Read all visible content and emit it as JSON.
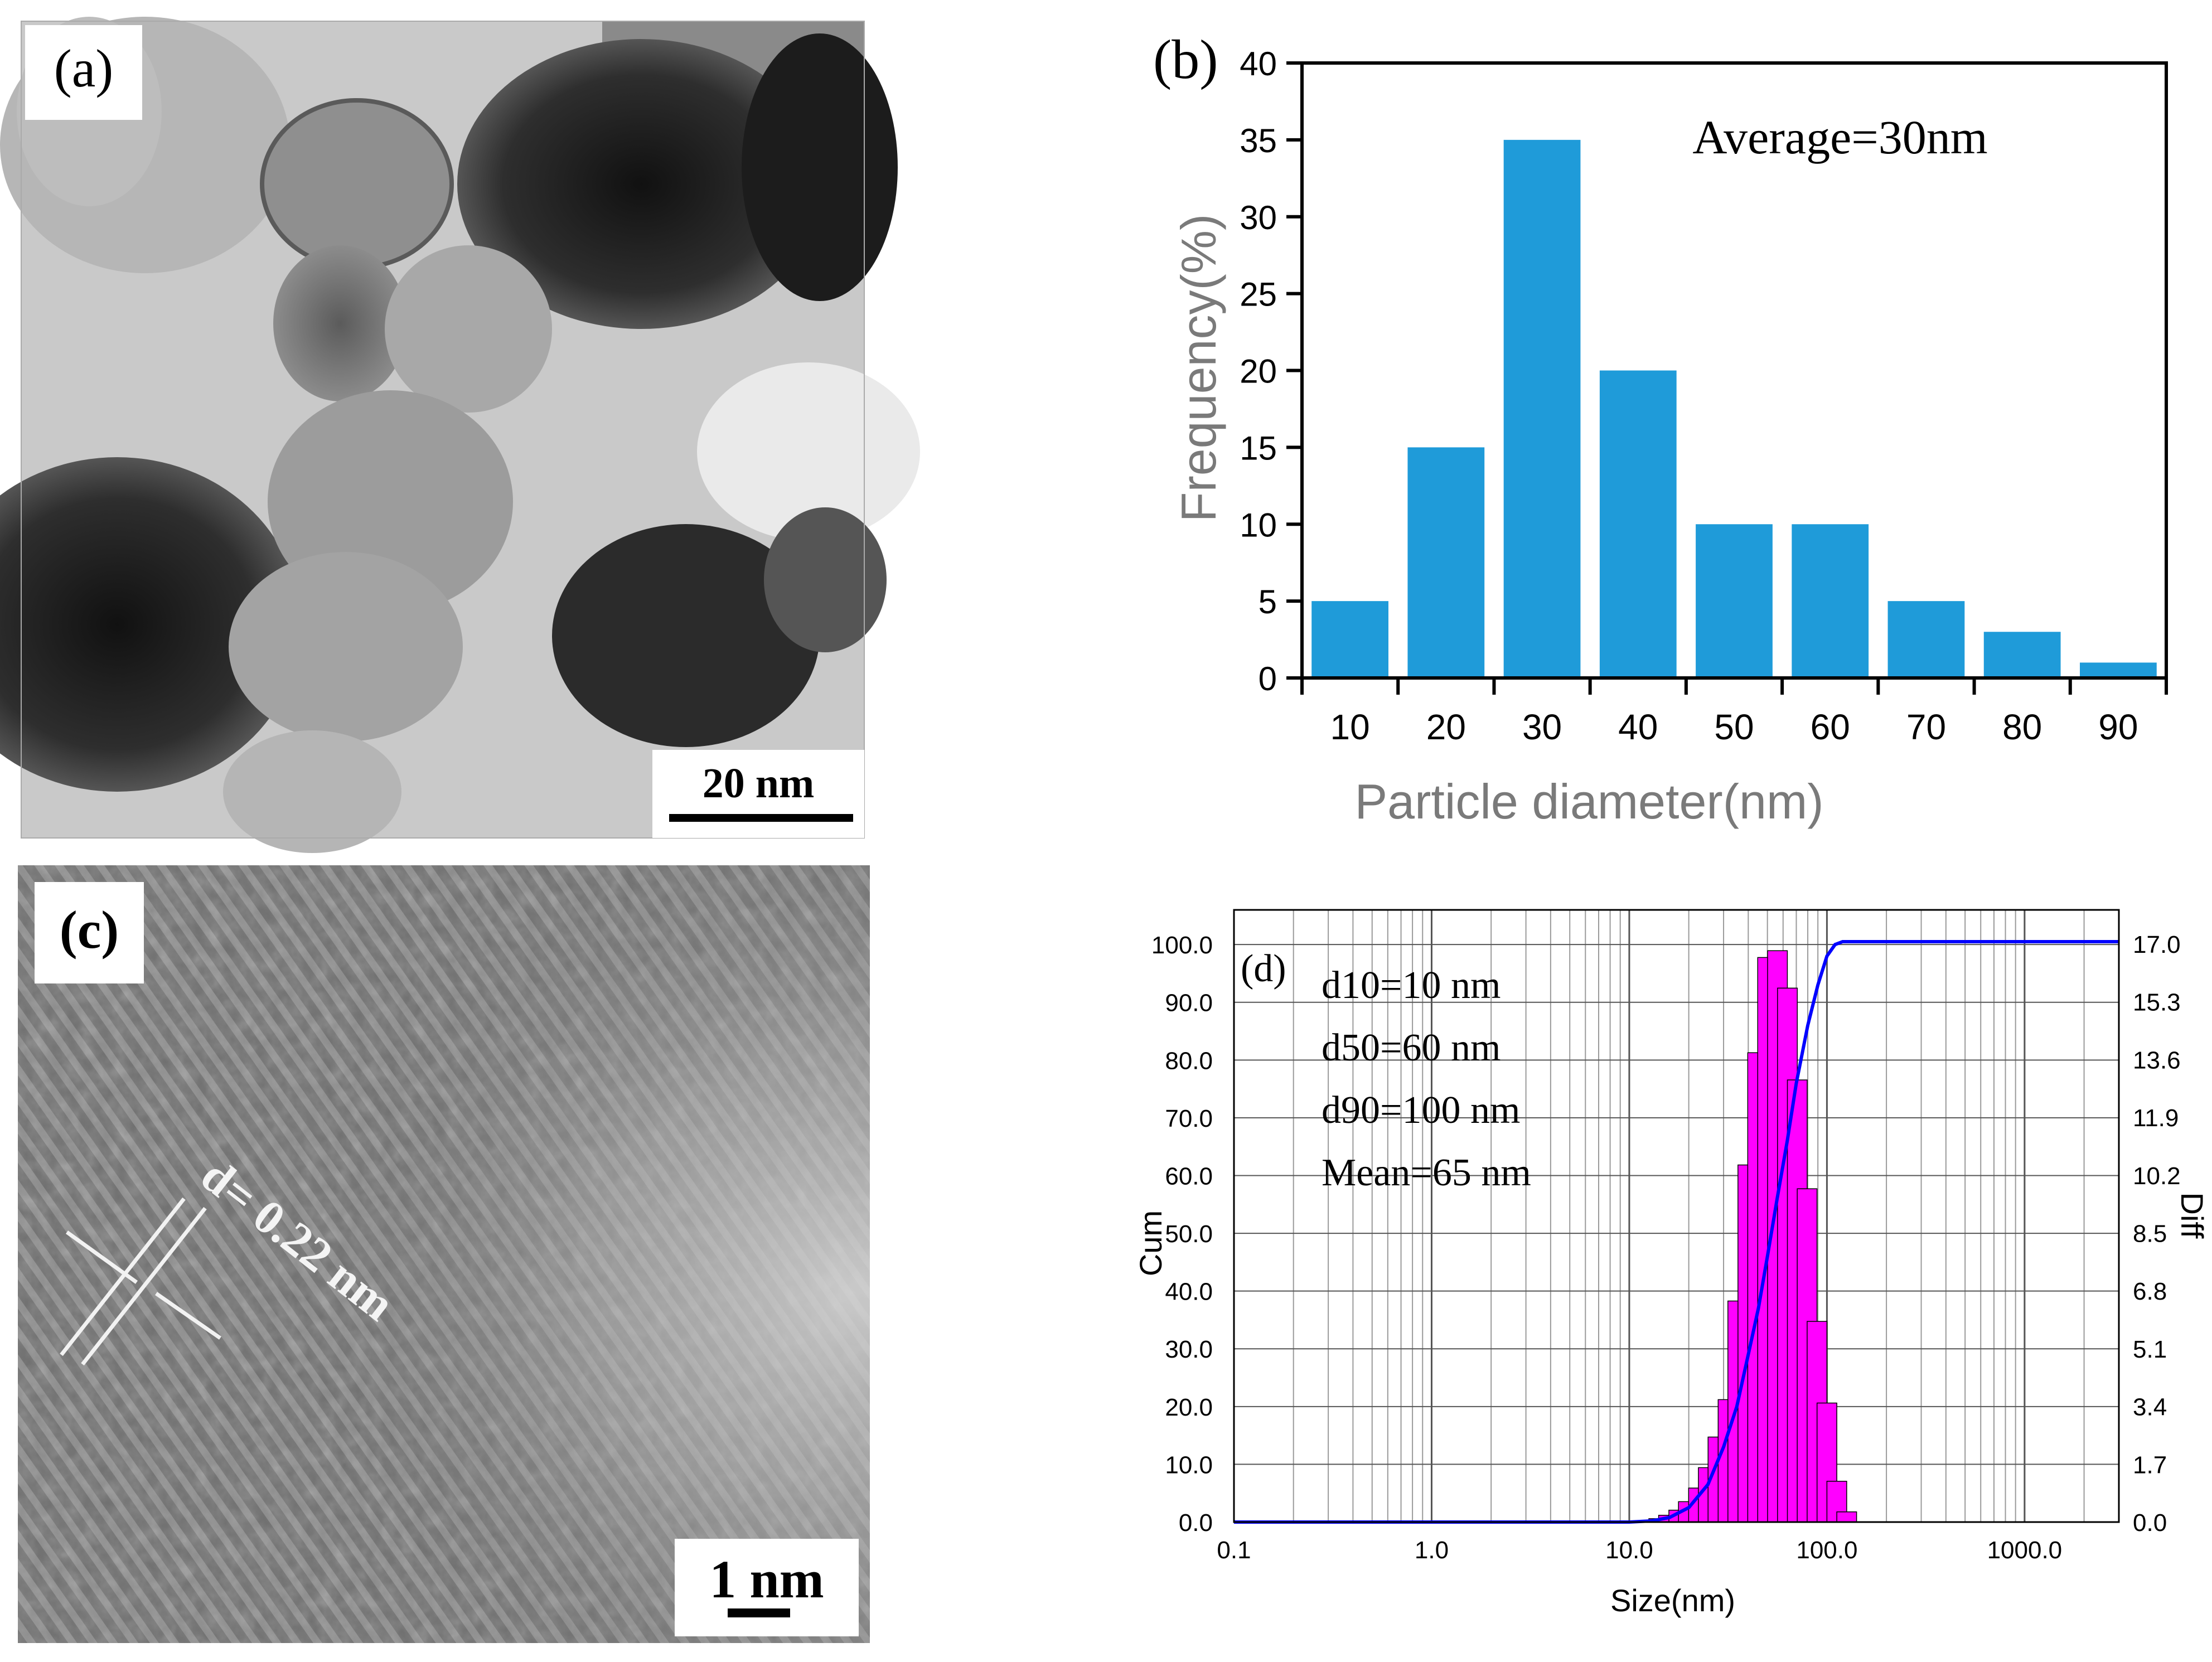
{
  "panels": {
    "a": {
      "label": "(a)",
      "scalebar": "20 nm"
    },
    "b": {
      "label": "(b)"
    },
    "c": {
      "label": "(c)",
      "scalebar": "1 nm",
      "annotation": "d= 0.22 nm"
    },
    "d": {
      "label": "(d)"
    }
  },
  "chart_data": [
    {
      "panel": "b",
      "type": "bar",
      "title": "",
      "annotation": "Average=30nm",
      "xlabel": "Particle  diameter(nm)",
      "ylabel": "Frequency(%)",
      "categories": [
        "10",
        "20",
        "30",
        "40",
        "50",
        "60",
        "70",
        "80",
        "90"
      ],
      "values": [
        5,
        15,
        35,
        20,
        10,
        10,
        5,
        3,
        1
      ],
      "ylim": [
        0,
        40
      ],
      "yticks": [
        "0",
        "5",
        "10",
        "15",
        "20",
        "25",
        "30",
        "35",
        "40"
      ],
      "color": "#1f9bd9",
      "grid": false
    },
    {
      "panel": "d",
      "type": "bar",
      "title": "",
      "xlabel": "Size(nm)",
      "ylabel_left": "Cum",
      "ylabel_right": "Diff",
      "x_scale": "log",
      "xlim": [
        0.1,
        3000
      ],
      "xticks": [
        "0.1",
        "1.0",
        "10.0",
        "100.0",
        "1000.0"
      ],
      "ylim_left": [
        0,
        106
      ],
      "ylim_right": [
        0,
        18.0
      ],
      "yticks_left": [
        "0.0",
        "10.0",
        "20.0",
        "30.0",
        "40.0",
        "50.0",
        "60.0",
        "70.0",
        "80.0",
        "90.0",
        "100.0"
      ],
      "yticks_right": [
        "0.0",
        "1.7",
        "3.4",
        "5.1",
        "6.8",
        "8.5",
        "10.2",
        "11.9",
        "13.6",
        "15.3",
        "17.0"
      ],
      "grid": true,
      "stats": [
        "d10=10 nm",
        "d50=60 nm",
        "d90=100 nm",
        "Mean=65 nm"
      ],
      "series": [
        {
          "kind": "histogram",
          "axis": "right",
          "color": "#ff00ff",
          "x": [
            14.1,
            15.8,
            17.8,
            19.9,
            22.4,
            25.1,
            28.1,
            31.6,
            35.4,
            39.8,
            44.6,
            50.1,
            56.2,
            63.1,
            70.8,
            79.4,
            89.1,
            100.0,
            112.2,
            125.9
          ],
          "values": [
            0.1,
            0.2,
            0.35,
            0.6,
            1.0,
            1.6,
            2.5,
            3.6,
            6.5,
            10.5,
            13.8,
            16.6,
            16.8,
            15.7,
            13.0,
            9.8,
            5.9,
            3.5,
            1.2,
            0.3
          ]
        },
        {
          "kind": "line",
          "axis": "left",
          "color": "#0000ff",
          "x": [
            0.1,
            1.0,
            10.0,
            13.0,
            16.0,
            20.0,
            25.0,
            30.0,
            35.0,
            40.0,
            45.0,
            50.0,
            56.0,
            63.0,
            70.0,
            80.0,
            90.0,
            100.0,
            110.0,
            120.0,
            150.0,
            3000.0
          ],
          "values": [
            0,
            0,
            0,
            0.2,
            0.8,
            2.5,
            6.5,
            13,
            20,
            29,
            37,
            46,
            56,
            66,
            76,
            86,
            93,
            98,
            100,
            100.5,
            100.5,
            100.5
          ]
        }
      ]
    }
  ]
}
